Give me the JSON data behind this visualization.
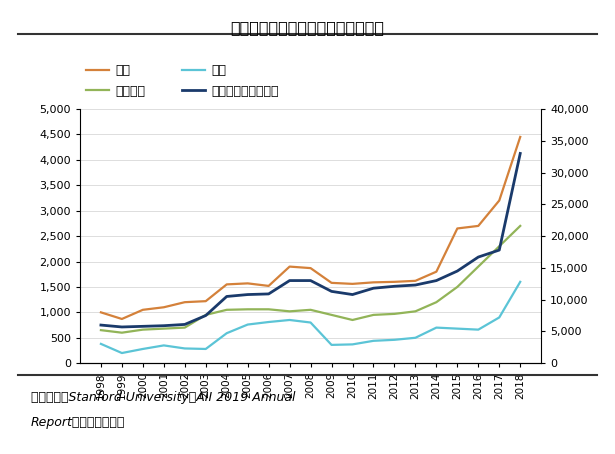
{
  "title": "图表：按论文发表机构分类美国情况",
  "years": [
    1998,
    1999,
    2000,
    2001,
    2002,
    2003,
    2004,
    2005,
    2006,
    2007,
    2008,
    2009,
    2010,
    2011,
    2012,
    2013,
    2014,
    2015,
    2016,
    2017,
    2018
  ],
  "enterprise": [
    1000,
    870,
    1050,
    1100,
    1200,
    1220,
    1550,
    1570,
    1520,
    1900,
    1870,
    1580,
    1560,
    1590,
    1600,
    1620,
    1800,
    2650,
    2700,
    3200,
    4450
  ],
  "research_inst": [
    650,
    600,
    660,
    680,
    700,
    950,
    1050,
    1060,
    1060,
    1020,
    1050,
    950,
    850,
    950,
    970,
    1020,
    1200,
    1500,
    1900,
    2300,
    2700
  ],
  "other": [
    380,
    200,
    280,
    350,
    290,
    280,
    590,
    760,
    810,
    850,
    800,
    360,
    370,
    440,
    460,
    500,
    700,
    680,
    660,
    900,
    1600
  ],
  "university_right": [
    6000,
    5700,
    5800,
    5900,
    6100,
    7500,
    10500,
    10800,
    10900,
    13000,
    13000,
    11300,
    10800,
    11800,
    12100,
    12300,
    13000,
    14500,
    16700,
    17800,
    33000
  ],
  "left_ylim": [
    0,
    5000
  ],
  "right_ylim": [
    0,
    40000
  ],
  "left_yticks": [
    0,
    500,
    1000,
    1500,
    2000,
    2500,
    3000,
    3500,
    4000,
    4500,
    5000
  ],
  "right_yticks": [
    0,
    5000,
    10000,
    15000,
    20000,
    25000,
    30000,
    35000,
    40000
  ],
  "enterprise_color": "#d4813a",
  "research_inst_color": "#92b458",
  "other_color": "#5bc4d6",
  "university_color": "#1a3a6b",
  "background_color": "#ffffff",
  "source_line1": "资料来源：Stanford University《AII 2019 Annual",
  "source_line2": "Report》，恒大研究院",
  "legend_enterprise": "企业",
  "legend_research": "科研机构",
  "legend_other": "其他",
  "legend_university": "高校学术界（右轴）"
}
